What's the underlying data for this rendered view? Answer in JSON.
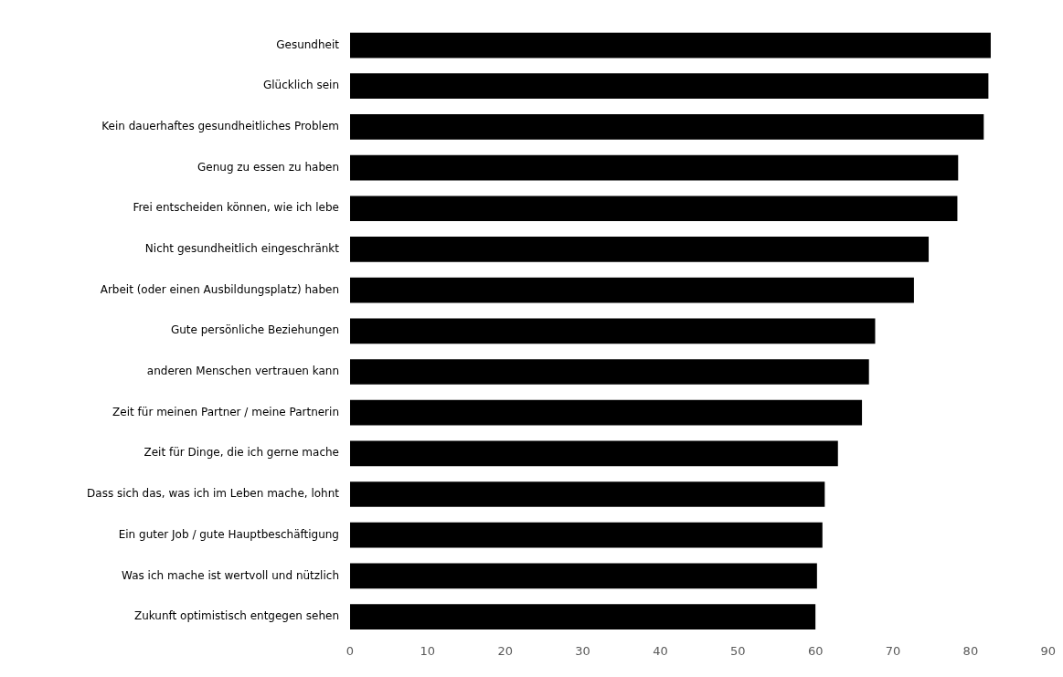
{
  "chart_data": {
    "type": "bar",
    "orientation": "horizontal",
    "categories": [
      "Gesundheit",
      "Glücklich sein",
      "Kein dauerhaftes gesundheitliches Problem",
      "Genug zu essen zu haben",
      "Frei entscheiden können, wie ich lebe",
      "Nicht gesundheitlich eingeschränkt",
      "Arbeit (oder einen Ausbildungsplatz) haben",
      "Gute persönliche Beziehungen",
      "anderen Menschen vertrauen kann",
      "Zeit für meinen Partner / meine Partnerin",
      "Zeit für Dinge, die ich gerne mache",
      "Dass sich das, was ich im Leben mache, lohnt",
      "Ein guter Job / gute Hauptbeschäftigung",
      "Was ich mache ist wertvoll und nützlich",
      "Zukunft optimistisch entgegen sehen"
    ],
    "values": [
      82.6,
      82.3,
      81.7,
      78.4,
      78.3,
      74.6,
      72.7,
      67.7,
      66.9,
      66.0,
      62.9,
      61.2,
      60.9,
      60.2,
      60.0
    ],
    "color": "#000000",
    "xlim": [
      0,
      90
    ],
    "xticks": [
      0,
      10,
      20,
      30,
      40,
      50,
      60,
      70,
      80,
      90
    ],
    "grid": false,
    "legend": false
  }
}
